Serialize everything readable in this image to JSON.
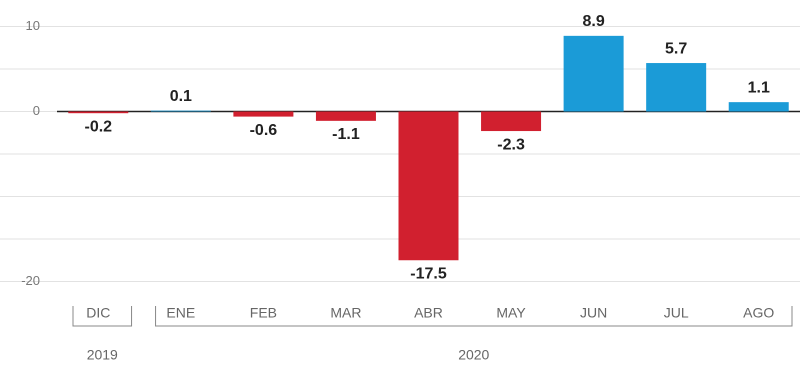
{
  "chart_data": {
    "type": "bar",
    "categories": [
      "DIC",
      "ENE",
      "FEB",
      "MAR",
      "ABR",
      "MAY",
      "JUN",
      "JUL",
      "AGO"
    ],
    "values": [
      -0.2,
      0.1,
      -0.6,
      -1.1,
      -17.5,
      -2.3,
      8.9,
      5.7,
      1.1
    ],
    "color_positive": "#1b9bd7",
    "color_negative": "#d1202f",
    "ylim": [
      -21,
      13
    ],
    "yticks": [
      10,
      0,
      -20
    ],
    "gridlines": [
      10,
      5,
      0,
      -5,
      -10,
      -15,
      -20
    ],
    "groups": [
      {
        "label": "2019",
        "count": 1
      },
      {
        "label": "2020",
        "count": 8
      }
    ]
  }
}
